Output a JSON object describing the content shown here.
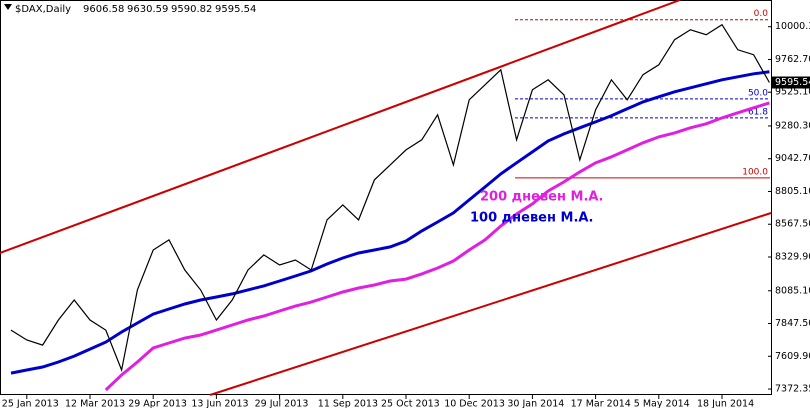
{
  "header": {
    "symbol": "$DAX,Daily",
    "open": 9606.58,
    "high": 9630.59,
    "low": 9590.82,
    "close": 9595.54
  },
  "chart_data": {
    "type": "line",
    "categories": [
      null,
      "25 Jan 2013",
      null,
      null,
      null,
      "12 Mar 2013",
      null,
      null,
      null,
      "29 Apr 2013",
      null,
      null,
      null,
      "13 Jun 2013",
      null,
      null,
      null,
      "29 Jul 2013",
      null,
      null,
      null,
      "11 Sep 2013",
      null,
      null,
      null,
      "25 Oct 2013",
      null,
      null,
      null,
      "10 Dec 2013",
      null,
      null,
      null,
      "30 Jan 2014",
      null,
      null,
      null,
      "17 Mar 2014",
      null,
      null,
      null,
      "5 May 2014",
      null,
      null,
      null,
      "18 Jun 2014",
      null,
      null,
      null
    ],
    "values": [
      7800,
      7728,
      7691,
      7873,
      8018,
      7873,
      7800,
      7510,
      8091,
      8381,
      8454,
      8236,
      8091,
      7873,
      8018,
      8236,
      8345,
      8272,
      8308,
      8236,
      8599,
      8708,
      8599,
      8889,
      8998,
      9107,
      9180,
      9361,
      8998,
      9470,
      9579,
      9688,
      9180,
      9543,
      9615,
      9506,
      9034,
      9397,
      9615,
      9470,
      9652,
      9724,
      9906,
      9978,
      9942,
      10015,
      9833,
      9797,
      9595.54
    ],
    "color": "#000000",
    "series": [
      {
        "name": "200 дневен М.А.",
        "color": "#e020e0",
        "values": [
          null,
          null,
          null,
          null,
          null,
          null,
          7365,
          7474,
          7568,
          7670,
          7706,
          7742,
          7764,
          7800,
          7837,
          7873,
          7902,
          7938,
          7974,
          8003,
          8040,
          8076,
          8105,
          8127,
          8156,
          8170,
          8207,
          8250,
          8301,
          8381,
          8454,
          8555,
          8642,
          8715,
          8809,
          8875,
          8947,
          9013,
          9056,
          9107,
          9158,
          9201,
          9230,
          9267,
          9296,
          9339,
          9376,
          9412,
          9448
        ]
      },
      {
        "name": "100 дневен М.А.",
        "color": "#0000cc",
        "values": [
          7488,
          7510,
          7532,
          7568,
          7611,
          7662,
          7713,
          7786,
          7851,
          7916,
          7953,
          7989,
          8018,
          8040,
          8062,
          8091,
          8120,
          8156,
          8192,
          8229,
          8279,
          8323,
          8359,
          8381,
          8403,
          8446,
          8519,
          8584,
          8650,
          8744,
          8838,
          8933,
          9013,
          9092,
          9172,
          9223,
          9267,
          9310,
          9354,
          9405,
          9455,
          9492,
          9528,
          9557,
          9586,
          9615,
          9637,
          9659,
          9673
        ]
      }
    ],
    "levels": [
      {
        "label": "0.0",
        "price": 10051,
        "color": "#cc0000"
      },
      {
        "label": "50.0",
        "price": 9477,
        "color": "#0000cc"
      },
      {
        "label": "61.8",
        "price": 9339,
        "color": "#0000cc"
      },
      {
        "label": "100.0",
        "price": 8904,
        "color": "#cc0000"
      }
    ],
    "ylim": [
      7329,
      10194
    ],
    "yticks": [
      {
        "value": 10000.3,
        "label": "10000.30"
      },
      {
        "value": 9762.7,
        "label": "9762.70"
      },
      {
        "value": 9525.1,
        "label": "9525.10"
      },
      {
        "value": 9280.3,
        "label": "9280.30"
      },
      {
        "value": 9042.7,
        "label": "9042.70"
      },
      {
        "value": 8805.1,
        "label": "8805.10"
      },
      {
        "value": 8567.5,
        "label": "8567.50"
      },
      {
        "value": 8329.9,
        "label": "8329.90"
      },
      {
        "value": 8085.1,
        "label": "8085.10"
      },
      {
        "value": 7847.5,
        "label": "7847.50"
      },
      {
        "value": 7609.9,
        "label": "7609.90"
      },
      {
        "value": 7372.35,
        "label": "7372.35"
      }
    ],
    "grid": false
  }
}
